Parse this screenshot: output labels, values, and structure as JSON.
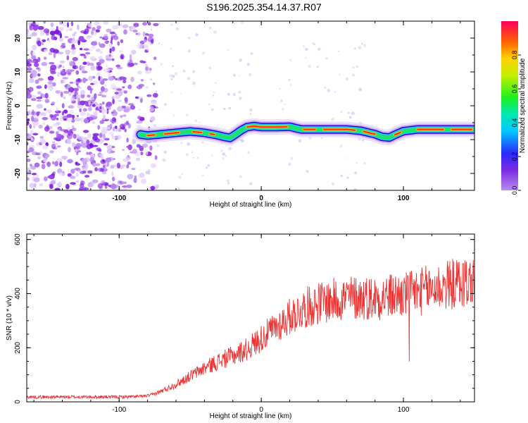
{
  "title": "S196.2025.354.14.37.R07",
  "chart_data": [
    {
      "type": "heatmap",
      "title": "S196.2025.354.14.37.R07",
      "xlabel": "Height of straight line (km)",
      "ylabel": "Frequency (Hz)",
      "xlim": [
        -165,
        150
      ],
      "ylim": [
        -25,
        25
      ],
      "xticks": [
        -100,
        0,
        100
      ],
      "yticks": [
        -20,
        -10,
        0,
        10,
        20
      ],
      "noise_region_x": [
        -165,
        -82
      ],
      "ridge": {
        "x": [
          -85,
          -80,
          -72,
          -60,
          -50,
          -40,
          -32,
          -26,
          -22,
          -18,
          -14,
          -10,
          -5,
          0,
          10,
          20,
          28,
          40,
          60,
          70,
          80,
          85,
          90,
          95,
          100,
          110,
          130,
          150
        ],
        "freq_hz": [
          -8.5,
          -8.8,
          -8.5,
          -8.0,
          -7.6,
          -8.0,
          -8.6,
          -9.2,
          -9.5,
          -8.4,
          -7.2,
          -6.3,
          -6.0,
          -6.3,
          -6.3,
          -6.2,
          -7.0,
          -7.0,
          -7.0,
          -7.4,
          -8.4,
          -9.2,
          -9.4,
          -8.4,
          -7.5,
          -7.0,
          -7.0,
          -7.0
        ]
      },
      "colorbar": {
        "label": "Normalized spectral amplitude",
        "range": [
          0.0,
          1.0
        ],
        "ticks": [
          "0.0",
          "0.2",
          "0.4",
          "0.6",
          "0.8"
        ]
      }
    },
    {
      "type": "line",
      "xlabel": "Height of straight line (km)",
      "ylabel": "SNR (10 * v/v)",
      "xlim": [
        -165,
        150
      ],
      "ylim": [
        0,
        620
      ],
      "xticks": [
        -100,
        0,
        100
      ],
      "yticks": [
        0,
        200,
        400,
        600
      ],
      "series": [
        {
          "name": "SNR",
          "color": "#ee3333",
          "x": [
            -165,
            -140,
            -120,
            -100,
            -85,
            -78,
            -70,
            -60,
            -50,
            -40,
            -30,
            -20,
            -10,
            0,
            10,
            20,
            30,
            40,
            50,
            60,
            70,
            80,
            90,
            100,
            110,
            120,
            130,
            140,
            150
          ],
          "trend": [
            18,
            18,
            18,
            18,
            20,
            24,
            40,
            65,
            95,
            125,
            150,
            170,
            195,
            235,
            275,
            315,
            345,
            365,
            375,
            385,
            385,
            385,
            390,
            395,
            405,
            420,
            430,
            440,
            445
          ]
        }
      ]
    }
  ]
}
